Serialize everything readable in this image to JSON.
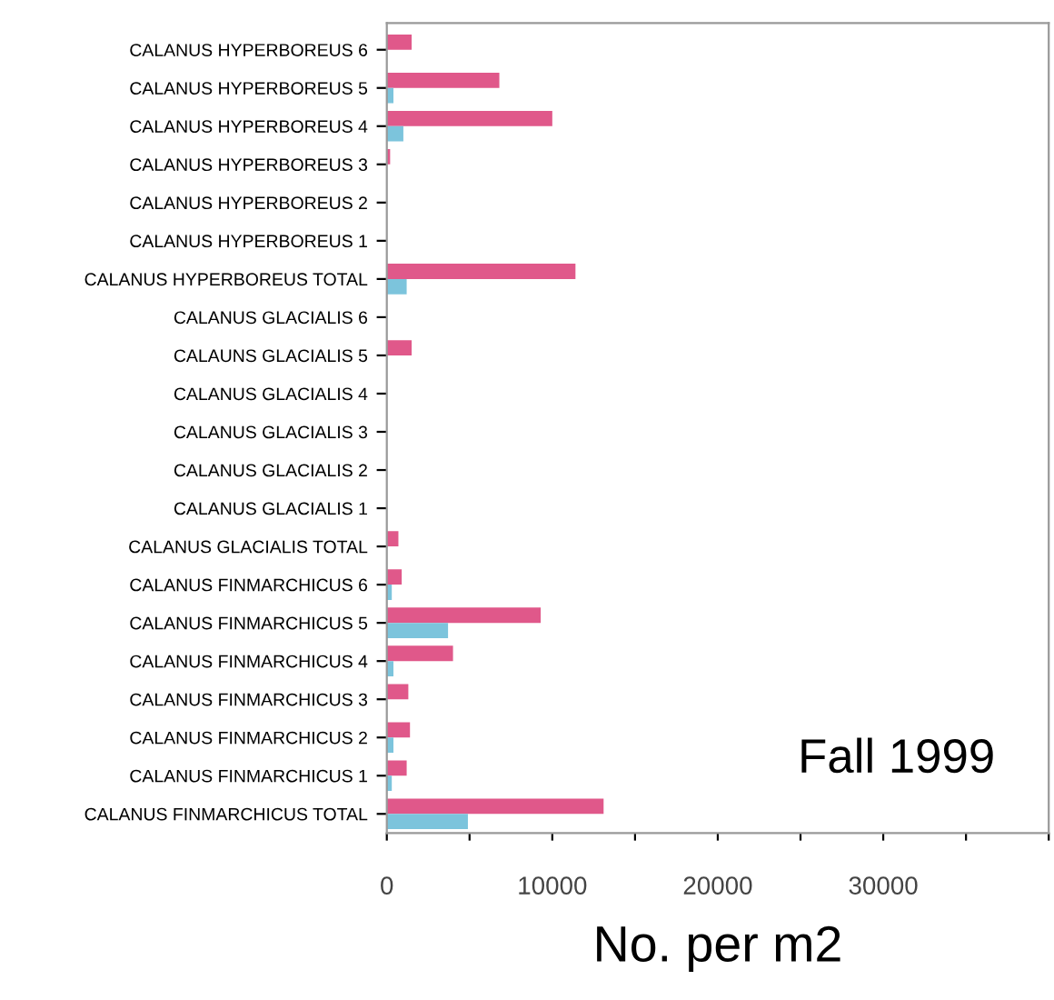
{
  "chart_data": {
    "type": "bar",
    "orientation": "horizontal",
    "xlabel": "No. per m2",
    "categories": [
      "CALANUS HYPERBOREUS 6",
      "CALANUS HYPERBOREUS 5",
      "CALANUS HYPERBOREUS 4",
      "CALANUS HYPERBOREUS 3",
      "CALANUS HYPERBOREUS 2",
      "CALANUS HYPERBOREUS 1",
      "CALANUS HYPERBOREUS TOTAL",
      "CALANUS GLACIALIS 6",
      "CALAUNS GLACIALIS 5",
      "CALANUS GLACIALIS 4",
      "CALANUS GLACIALIS 3",
      "CALANUS GLACIALIS 2",
      "CALANUS GLACIALIS 1",
      "CALANUS GLACIALIS TOTAL",
      "CALANUS FINMARCHICUS 6",
      "CALANUS FINMARCHICUS 5",
      "CALANUS FINMARCHICUS 4",
      "CALANUS FINMARCHICUS 3",
      "CALANUS FINMARCHICUS 2",
      "CALANUS FINMARCHICUS 1",
      "CALANUS FINMARCHICUS TOTAL"
    ],
    "series": [
      {
        "color": "#e0588a",
        "values": [
          1500,
          6800,
          10000,
          200,
          0,
          0,
          11400,
          0,
          1500,
          0,
          0,
          0,
          0,
          700,
          900,
          9300,
          4000,
          1300,
          1400,
          1200,
          13100
        ]
      },
      {
        "color": "#7cc4dc",
        "values": [
          0,
          400,
          1000,
          0,
          0,
          0,
          1200,
          0,
          0,
          0,
          0,
          0,
          0,
          0,
          300,
          3700,
          400,
          0,
          400,
          300,
          4900
        ]
      }
    ],
    "xlim": [
      0,
      40000
    ],
    "xticks": [
      0,
      {
        "value": 5000,
        "label": null
      },
      10000,
      {
        "value": 15000,
        "label": null
      },
      20000,
      {
        "value": 25000,
        "label": null
      },
      30000,
      {
        "value": 35000,
        "label": null
      },
      {
        "value": 40000,
        "label": null
      }
    ],
    "annotations": [
      "Fall 1999"
    ],
    "grid": false,
    "legend": false
  }
}
